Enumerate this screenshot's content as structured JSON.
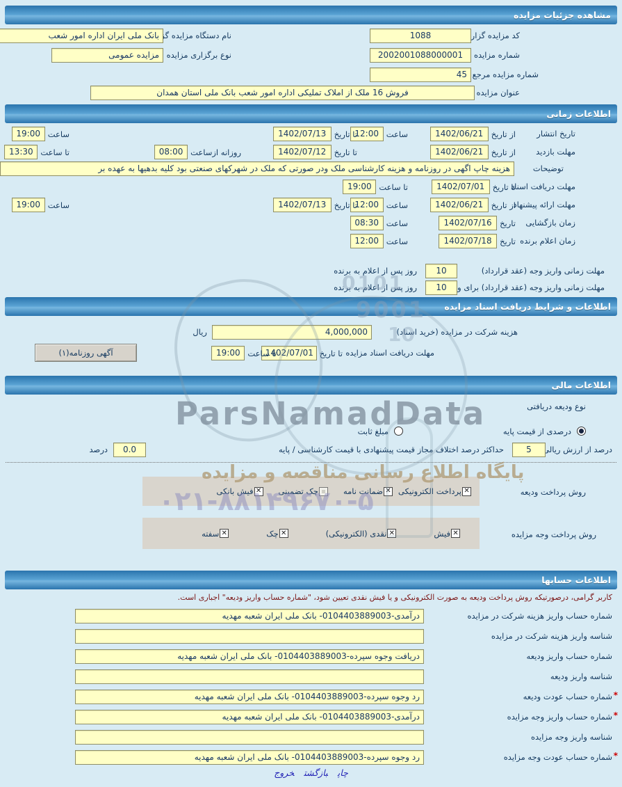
{
  "header": {
    "title": "مشاهده جزئیات مزایده"
  },
  "general": {
    "code_label": "کد مزایده گزار",
    "code": "1088",
    "org_label": "نام دستگاه مزایده گزار",
    "org": "بانک ملی ایران اداره امور شعب",
    "number_label": "شماره مزایده",
    "number": "2002001088000001",
    "type_label": "نوع برگزاری مزایده",
    "type": "مزایده عمومی",
    "ref_label": "شماره مزایده مرجع",
    "ref": "45",
    "title_label": "عنوان مزایده",
    "title": "فروش 16 ملک از املاک تملیکی اداره امور شعب بانک ملی استان همدان"
  },
  "time_section": {
    "title": "اطلاعات زمانی",
    "publish": {
      "label": "تاریخ انتشار",
      "from_label": "از تاریخ",
      "from_date": "1402/06/21",
      "hour_label": "ساعت",
      "hour": "12:00",
      "to_label": "تا تاریخ",
      "to_date": "1402/07/13",
      "to_hour_label": "ساعت",
      "to_hour": "19:00"
    },
    "visit": {
      "label": "مهلت بازدید",
      "from_label": "از تاریخ",
      "from_date": "1402/06/21",
      "to_label": "تا تاریخ",
      "to_date": "1402/07/12",
      "daily_label": "روزانه ازساعت",
      "daily_from": "08:00",
      "until_label": "تا ساعت",
      "until": "13:30"
    },
    "notes": {
      "label": "توضیحات",
      "value": "هزینه چاپ اگهی در روزنامه و هزینه کارشناسی ملک ودر صورتی که ملک در شهرکهای صنعتی بود کلیه بدهیها به  عهده بر"
    },
    "docs_deadline": {
      "label": "مهلت دریافت اسناد",
      "to_label": "تا تاریخ",
      "to_date": "1402/07/01",
      "until_label": "تا ساعت",
      "until": "19:00"
    },
    "offer": {
      "label": "مهلت ارائه پیشنهاد",
      "from_label": "از تاریخ",
      "from_date": "1402/06/21",
      "hour_label": "ساعت",
      "hour": "12:00",
      "to_label": "تا تاریخ",
      "to_date": "1402/07/13",
      "to_hour_label": "ساعت",
      "to_hour": "19:00"
    },
    "opening": {
      "label": "زمان بازگشایی",
      "date_label": "تاریخ",
      "date": "1402/07/16",
      "hour_label": "ساعت",
      "hour": "08:30"
    },
    "winner": {
      "label": "زمان اعلام برنده",
      "date_label": "تاریخ",
      "date": "1402/07/18",
      "hour_label": "ساعت",
      "hour": "12:00"
    },
    "pay1": {
      "label": "مهلت زمانی واریز وجه (عقد قرارداد)",
      "days": "10",
      "suffix": "روز پس از اعلام به برنده"
    },
    "pay2": {
      "label": "مهلت زمانی واریز وجه (عقد قرارداد) برای وثیقه گذار",
      "days": "10",
      "suffix": "روز پس از اعلام به برنده"
    }
  },
  "docs_section": {
    "title": "اطلاعات و شرایط دریافت اسناد مزایده",
    "fee_label": "هزینه شرکت در مزایده (خرید اسناد)",
    "fee": "4,000,000",
    "fee_unit": "ریال",
    "deadline_label": "مهلت دریافت اسناد مزایده",
    "to_label": "تا تاریخ",
    "date": "1402/07/01",
    "until_label": "تا ساعت",
    "time": "19:00",
    "newspaper_button": "آگهی روزنامه(۱)"
  },
  "financial_section": {
    "title": "اطلاعات مالی",
    "deposit_type_label": "نوع ودیعه دریافتی",
    "radio_percent": "درصدی از قیمت پایه",
    "radio_fixed": "مبلغ ثابت",
    "percent_label": "درصد از ارزش ریالی مال",
    "percent_value": "5",
    "max_diff_label": "حداکثر درصد اختلاف مجاز قیمت پیشنهادی با قیمت کارشناسی / پایه",
    "max_diff_value": "0.0",
    "max_diff_unit": "درصد",
    "deposit_method_label": "روش پرداخت ودیعه",
    "deposit_methods": [
      {
        "label": "پرداخت الکترونیکی",
        "checked": true
      },
      {
        "label": "ضمانت نامه",
        "checked": true
      },
      {
        "label": "چک تضمینی",
        "checked": false
      },
      {
        "label": "فیش بانکی",
        "checked": true
      }
    ],
    "payment_method_label": "روش پرداخت وجه مزایده",
    "payment_methods": [
      {
        "label": "فیش",
        "checked": true
      },
      {
        "label": "نقدی (الکترونیکی)",
        "checked": true
      },
      {
        "label": "چک",
        "checked": true
      },
      {
        "label": "سفته",
        "checked": true
      }
    ]
  },
  "accounts_section": {
    "title": "اطلاعات حسابها",
    "notice": "کاربر گرامی، درصورتیکه روش پرداخت ودیعه به صورت الکترونیکی و یا فیش نقدی تعیین شود، \"شماره حساب واریز ودیعه\" اجباری است.",
    "rows": [
      {
        "star": "",
        "label": "شماره حساب واریز هزینه شرکت در مزایده",
        "value": "درآمدی-0104403889003- بانک ملی ایران شعبه مهدیه"
      },
      {
        "star": "",
        "label": "شناسه واریز هزینه شرکت در مزایده",
        "value": ""
      },
      {
        "star": "",
        "label": "شماره حساب واریز ودیعه",
        "value": "دریافت وجوه سپرده-0104403889003- بانک ملی ایران شعبه مهدیه"
      },
      {
        "star": "",
        "label": "شناسه واریز ودیعه",
        "value": ""
      },
      {
        "star": "*",
        "label": "شماره حساب عودت ودیعه",
        "value": "رد وجوه سپرده-0104403889003- بانک ملی ایران شعبه مهدیه"
      },
      {
        "star": "*",
        "label": "شماره حساب واریز وجه مزایده",
        "value": "درآمدی-0104403889003- بانک ملی ایران شعبه مهدیه"
      },
      {
        "star": "",
        "label": "شناسه واریز وجه مزایده",
        "value": ""
      },
      {
        "star": "*",
        "label": "شماره حساب عودت وجه مزایده",
        "value": "رد وجوه سپرده-0104403889003- بانک ملی ایران شعبه مهدیه"
      }
    ]
  },
  "footer": {
    "print": "چاپ",
    "back": "بازگشت",
    "exit": "خروج"
  },
  "watermark": {
    "brand": "ParsNamadData",
    "tagline": "پایگاه اطلاع رسانی مناقصه و مزایده",
    "phone": "۰۲۱-۸۸۱۴۹۶۷۰-۵",
    "deco1": "0101",
    "deco2": "9001",
    "deco3": "10"
  }
}
